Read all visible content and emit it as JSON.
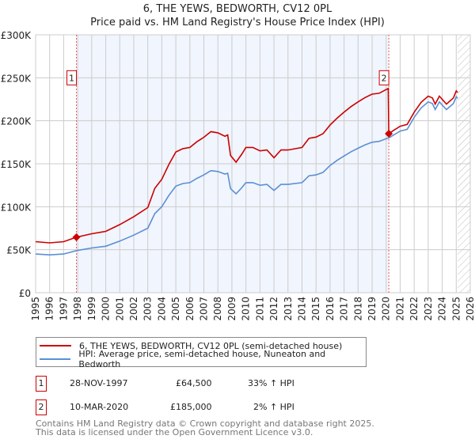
{
  "title_line1": "6, THE YEWS, BEDWORTH, CV12 0PL",
  "title_line2": "Price paid vs. HM Land Registry's House Price Index (HPI)",
  "chart_data": {
    "type": "line",
    "title": "6, THE YEWS, BEDWORTH, CV12 0PL — Price paid vs. HM Land Registry's House Price Index (HPI)",
    "xlim": [
      1995,
      2026
    ],
    "ylim": [
      0,
      300000
    ],
    "yticks": [
      0,
      50000,
      100000,
      150000,
      200000,
      250000,
      300000
    ],
    "ytick_labels": [
      "£0",
      "£50K",
      "£100K",
      "£150K",
      "£200K",
      "£250K",
      "£300K"
    ],
    "xticks": [
      1995,
      1996,
      1997,
      1998,
      1999,
      2000,
      2001,
      2002,
      2003,
      2004,
      2005,
      2006,
      2007,
      2008,
      2009,
      2010,
      2011,
      2012,
      2013,
      2014,
      2015,
      2016,
      2017,
      2018,
      2019,
      2020,
      2021,
      2022,
      2023,
      2024,
      2025,
      2026
    ],
    "grid": true,
    "shaded_period": [
      1997.91,
      2020.19
    ],
    "hatched_from": 2025.1,
    "series": [
      {
        "name": "6, THE YEWS, BEDWORTH, CV12 0PL (semi-detached house)",
        "color": "#cc0000",
        "x": [
          1995,
          1996,
          1997,
          1997.91,
          1999,
          2000,
          2001,
          2002,
          2003,
          2003.5,
          2004,
          2004.5,
          2005,
          2005.5,
          2006,
          2006.5,
          2007,
          2007.5,
          2008,
          2008.5,
          2008.7,
          2008.9,
          2009.3,
          2009.7,
          2010,
          2010.5,
          2011,
          2011.5,
          2012,
          2012.5,
          2013,
          2014,
          2014.5,
          2015,
          2015.5,
          2016,
          2016.5,
          2017,
          2017.5,
          2018,
          2018.5,
          2019,
          2019.5,
          2020.15,
          2020.19,
          2020.5,
          2021,
          2021.5,
          2022,
          2022.5,
          2023,
          2023.3,
          2023.5,
          2023.8,
          2024.3,
          2024.8,
          2025,
          2025.1
        ],
        "values": [
          59400,
          58000,
          59400,
          64500,
          68600,
          71300,
          79200,
          88400,
          99000,
          121400,
          132000,
          149000,
          163700,
          167600,
          169000,
          175600,
          180800,
          187400,
          186000,
          182000,
          183500,
          159700,
          151800,
          161000,
          169000,
          169000,
          165000,
          166000,
          157000,
          166000,
          166000,
          169000,
          179500,
          181000,
          185000,
          195000,
          203000,
          210000,
          216500,
          222000,
          227000,
          231000,
          232000,
          237600,
          185000,
          188500,
          193600,
          195700,
          210000,
          221500,
          228700,
          226600,
          219400,
          228700,
          219400,
          226600,
          234800,
          232800
        ]
      },
      {
        "name": "HPI: Average price, semi-detached house, Nuneaton and Bedworth",
        "color": "#5b8fd4",
        "x": [
          1995,
          1996,
          1997,
          1997.91,
          1999,
          2000,
          2001,
          2002,
          2003,
          2003.5,
          2004,
          2004.5,
          2005,
          2005.5,
          2006,
          2006.5,
          2007,
          2007.5,
          2008,
          2008.5,
          2008.7,
          2008.9,
          2009.3,
          2009.7,
          2010,
          2010.5,
          2011,
          2011.5,
          2012,
          2012.5,
          2013,
          2014,
          2014.5,
          2015,
          2015.5,
          2016,
          2016.5,
          2017,
          2017.5,
          2018,
          2018.5,
          2019,
          2019.5,
          2020.15,
          2020.19,
          2020.5,
          2021,
          2021.5,
          2022,
          2022.5,
          2023,
          2023.3,
          2023.5,
          2023.8,
          2024.3,
          2024.8,
          2025,
          2025.1
        ],
        "values": [
          45000,
          44000,
          45000,
          49000,
          52000,
          54000,
          60000,
          67000,
          75000,
          92000,
          100000,
          113000,
          124000,
          127000,
          128000,
          133000,
          137000,
          142000,
          141000,
          138000,
          139000,
          121000,
          115000,
          122000,
          128000,
          128000,
          125000,
          126000,
          119000,
          126000,
          126000,
          128000,
          136000,
          137000,
          140000,
          148000,
          154000,
          159000,
          164000,
          168000,
          172000,
          175000,
          176000,
          180000,
          180000,
          183000,
          188000,
          190000,
          204000,
          215000,
          222000,
          220000,
          213000,
          222000,
          213000,
          220000,
          228000,
          226000
        ]
      }
    ],
    "sales": [
      {
        "label": "1",
        "x": 1997.91,
        "value": 64500
      },
      {
        "label": "2",
        "x": 2020.19,
        "value": 185000
      }
    ]
  },
  "legend": {
    "red_label": "6, THE YEWS, BEDWORTH, CV12 0PL (semi-detached house)",
    "blue_label": "HPI: Average price, semi-detached house, Nuneaton and Bedworth"
  },
  "transactions": [
    {
      "num": "1",
      "date": "28-NOV-1997",
      "price": "£64,500",
      "hpi": "33% ↑ HPI"
    },
    {
      "num": "2",
      "date": "10-MAR-2020",
      "price": "£185,000",
      "hpi": "2% ↑ HPI"
    }
  ],
  "footer_line1": "Contains HM Land Registry data © Crown copyright and database right 2025.",
  "footer_line2": "This data is licensed under the Open Government Licence v3.0."
}
